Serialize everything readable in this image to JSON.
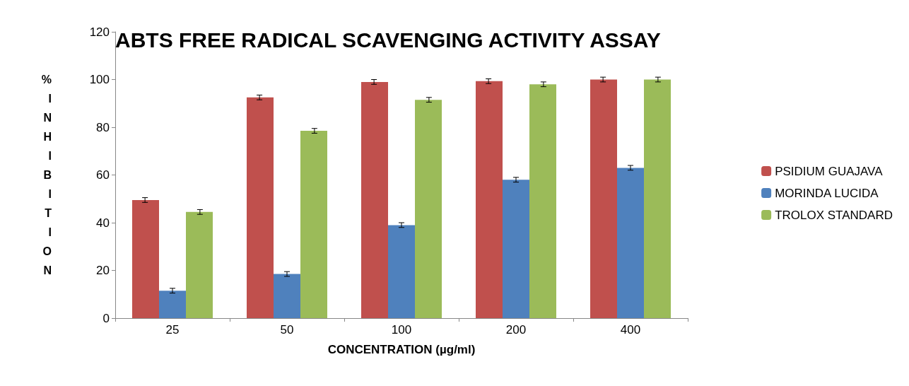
{
  "chart_data": {
    "type": "bar",
    "title": "ABTS FREE RADICAL SCAVENGING ACTIVITY ASSAY",
    "xlabel": "CONCENTRATION (µg/ml)",
    "ylabel": "% INHIBITION",
    "categories": [
      "25",
      "50",
      "100",
      "200",
      "400"
    ],
    "series": [
      {
        "name": "PSIDIUM GUAJAVA",
        "color": "#c0504d",
        "values": [
          49.5,
          92.5,
          99,
          99.3,
          100
        ],
        "errors": [
          1,
          1,
          1,
          1,
          1
        ]
      },
      {
        "name": "MORINDA LUCIDA",
        "color": "#4f81bd",
        "values": [
          11.5,
          18.5,
          39,
          58,
          63
        ],
        "errors": [
          1,
          1,
          1,
          1,
          1
        ]
      },
      {
        "name": "TROLOX STANDARD",
        "color": "#9bbb59",
        "values": [
          44.5,
          78.5,
          91.5,
          98,
          100
        ],
        "errors": [
          1,
          1,
          1,
          1,
          1
        ]
      }
    ],
    "ylim": [
      0,
      120
    ],
    "yticks": [
      0,
      20,
      40,
      60,
      80,
      100,
      120
    ],
    "grid": false,
    "legend": "right"
  }
}
